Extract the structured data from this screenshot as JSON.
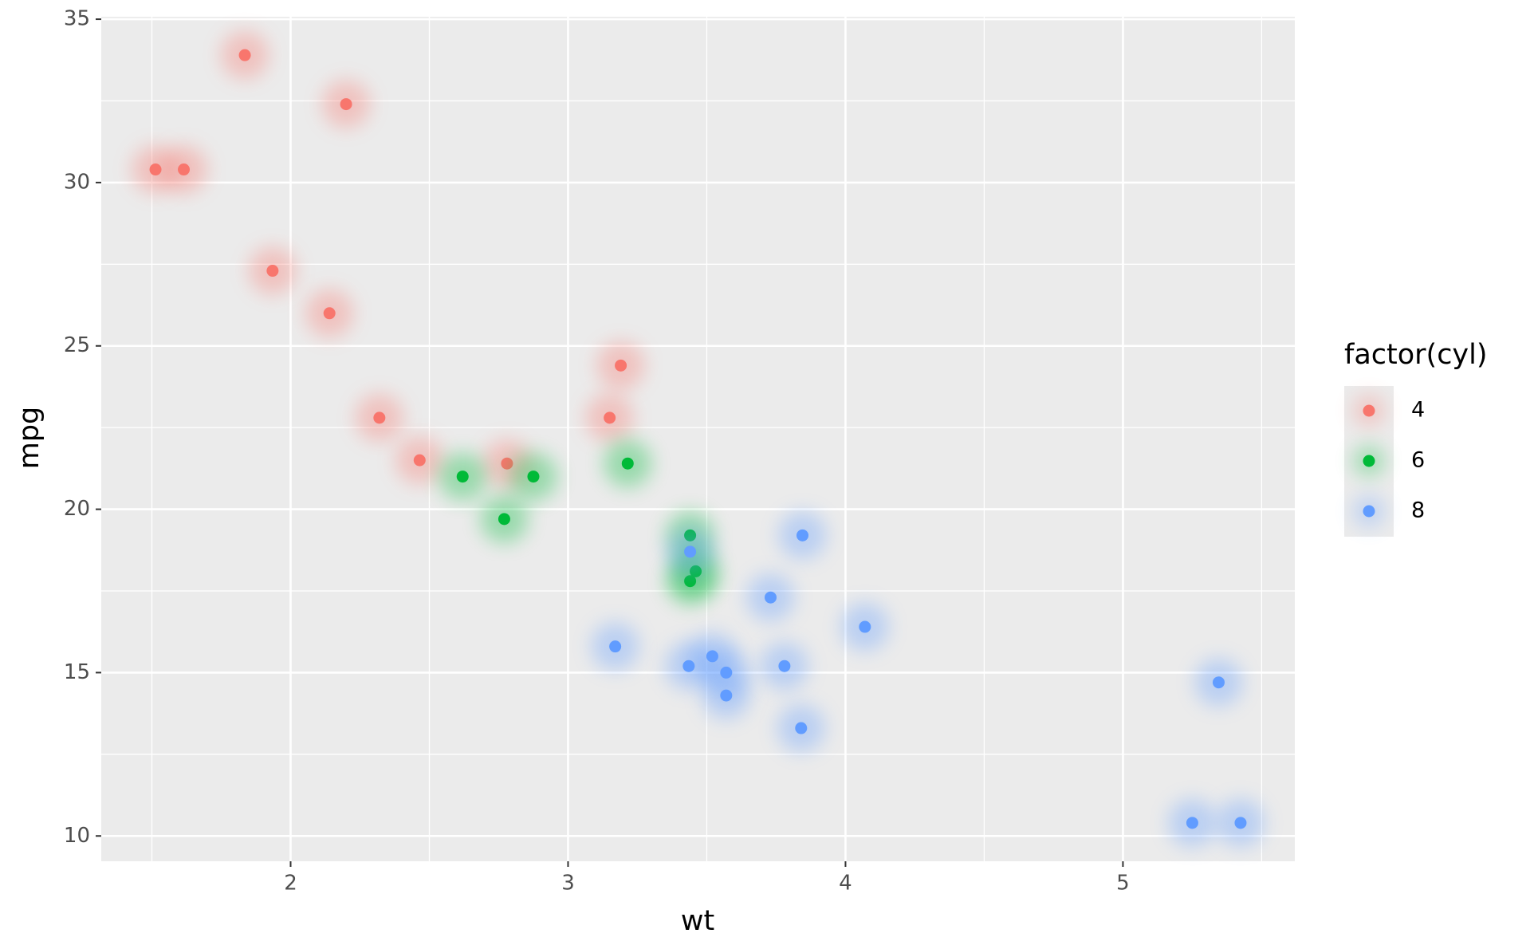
{
  "chart_data": {
    "type": "scatter",
    "x_label": "wt",
    "y_label": "mpg",
    "legend_title": "factor(cyl)",
    "legend_position": "right",
    "grid": true,
    "xlim": [
      1.3175,
      5.6195
    ],
    "ylim": [
      9.225,
      35.075
    ],
    "xticks": [
      2,
      3,
      4,
      5
    ],
    "yticks": [
      10,
      15,
      20,
      25,
      30,
      35
    ],
    "series": [
      {
        "name": "4",
        "color": "#F8766D",
        "x": [
          2.32,
          3.19,
          3.15,
          2.2,
          1.615,
          1.835,
          2.465,
          1.935,
          2.14,
          1.513,
          2.78
        ],
        "values": [
          22.8,
          24.4,
          22.8,
          32.4,
          30.4,
          33.9,
          21.5,
          27.3,
          26.0,
          30.4,
          21.4
        ]
      },
      {
        "name": "6",
        "color": "#00BA38",
        "x": [
          2.62,
          2.875,
          3.215,
          3.46,
          3.44,
          3.44,
          2.77
        ],
        "values": [
          21.0,
          21.0,
          21.4,
          18.1,
          19.2,
          17.8,
          19.7
        ]
      },
      {
        "name": "8",
        "color": "#619CFF",
        "x": [
          3.44,
          3.57,
          4.07,
          3.73,
          3.78,
          5.25,
          5.424,
          5.345,
          3.52,
          3.435,
          3.84,
          3.845,
          3.17,
          3.57
        ],
        "values": [
          18.7,
          14.3,
          16.4,
          17.3,
          15.2,
          10.4,
          10.4,
          14.7,
          15.5,
          15.2,
          13.3,
          19.2,
          15.8,
          15.0
        ]
      }
    ]
  }
}
